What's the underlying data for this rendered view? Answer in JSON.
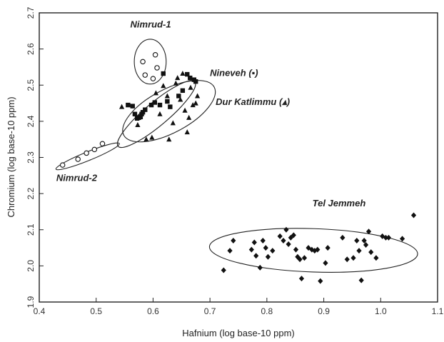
{
  "chart_data": {
    "type": "scatter",
    "xlabel": "Hafnium (log base-10 ppm)",
    "ylabel": "Chromium (log base-10 ppm)",
    "xlim": [
      0.4,
      1.1
    ],
    "ylim": [
      1.9,
      2.7
    ],
    "x_ticks": [
      0.4,
      0.5,
      0.6,
      0.7,
      0.8,
      0.9,
      1.0,
      1.1
    ],
    "x_tick_labels": [
      "0.4",
      "0.5",
      "0.6",
      "0.7",
      "0.8",
      "0.9",
      "1.0",
      "1.1"
    ],
    "y_ticks": [
      1.9,
      2.0,
      2.1,
      2.2,
      2.3,
      2.4,
      2.5,
      2.6,
      2.7
    ],
    "y_tick_labels": [
      "1.9",
      "2.0",
      "2.1",
      "2.2",
      "2.3",
      "2.4",
      "2.5",
      "2.6",
      "2.7"
    ],
    "grid": false,
    "annotations": [
      {
        "text": "Nimrud-1",
        "x": 0.56,
        "y": 2.66
      },
      {
        "text": "Nineveh (▪)",
        "x": 0.7,
        "y": 2.525
      },
      {
        "text": "Dur Katlimmu (▴)",
        "x": 0.71,
        "y": 2.445
      },
      {
        "text": "Nimrud-2",
        "x": 0.43,
        "y": 2.235
      },
      {
        "text": "Tel Jemmeh",
        "x": 0.88,
        "y": 2.165
      }
    ],
    "groups": [
      {
        "marker": "open-circle",
        "ellipse": {
          "cx": 0.595,
          "cy": 2.565,
          "rx": 0.028,
          "ry": 0.062,
          "angle": 0
        },
        "points": [
          [
            0.582,
            2.565
          ],
          [
            0.604,
            2.584
          ],
          [
            0.607,
            2.548
          ],
          [
            0.586,
            2.528
          ],
          [
            0.6,
            2.518
          ]
        ]
      },
      {
        "marker": "open-circle",
        "ellipse": {
          "cx": 0.485,
          "cy": 2.303,
          "rx": 0.06,
          "ry": 0.012,
          "angle": -22
        },
        "points": [
          [
            0.441,
            2.279
          ],
          [
            0.468,
            2.295
          ],
          [
            0.483,
            2.312
          ],
          [
            0.497,
            2.322
          ],
          [
            0.511,
            2.338
          ]
        ]
      },
      {
        "marker": "square",
        "ellipse": {
          "cx": 0.606,
          "cy": 2.42,
          "rx": 0.088,
          "ry": 0.032,
          "angle": -40
        },
        "points": [
          [
            0.556,
            2.445
          ],
          [
            0.564,
            2.442
          ],
          [
            0.568,
            2.42
          ],
          [
            0.572,
            2.408
          ],
          [
            0.575,
            2.41
          ],
          [
            0.578,
            2.412
          ],
          [
            0.582,
            2.425
          ],
          [
            0.586,
            2.432
          ],
          [
            0.597,
            2.445
          ],
          [
            0.603,
            2.452
          ],
          [
            0.612,
            2.445
          ],
          [
            0.618,
            2.532
          ],
          [
            0.625,
            2.455
          ],
          [
            0.63,
            2.44
          ],
          [
            0.645,
            2.47
          ],
          [
            0.652,
            2.485
          ],
          [
            0.66,
            2.53
          ],
          [
            0.665,
            2.52
          ],
          [
            0.672,
            2.515
          ],
          [
            0.675,
            2.51
          ],
          [
            0.58,
            2.42
          ]
        ]
      },
      {
        "marker": "triangle",
        "ellipse": {
          "cx": 0.628,
          "cy": 2.428,
          "rx": 0.09,
          "ry": 0.06,
          "angle": -28
        },
        "points": [
          [
            0.545,
            2.44
          ],
          [
            0.573,
            2.39
          ],
          [
            0.588,
            2.35
          ],
          [
            0.598,
            2.355
          ],
          [
            0.605,
            2.478
          ],
          [
            0.612,
            2.42
          ],
          [
            0.618,
            2.498
          ],
          [
            0.625,
            2.47
          ],
          [
            0.628,
            2.35
          ],
          [
            0.635,
            2.395
          ],
          [
            0.64,
            2.505
          ],
          [
            0.643,
            2.52
          ],
          [
            0.648,
            2.46
          ],
          [
            0.652,
            2.532
          ],
          [
            0.656,
            2.43
          ],
          [
            0.66,
            2.37
          ],
          [
            0.663,
            2.41
          ],
          [
            0.666,
            2.493
          ],
          [
            0.67,
            2.445
          ],
          [
            0.675,
            2.45
          ],
          [
            0.678,
            2.47
          ]
        ]
      },
      {
        "marker": "diamond",
        "ellipse": {
          "cx": 0.882,
          "cy": 2.043,
          "rx": 0.183,
          "ry": 0.06,
          "angle": 2
        },
        "points": [
          [
            0.724,
            1.988
          ],
          [
            0.735,
            2.042
          ],
          [
            0.741,
            2.07
          ],
          [
            0.773,
            2.045
          ],
          [
            0.778,
            2.065
          ],
          [
            0.781,
            2.028
          ],
          [
            0.788,
            1.995
          ],
          [
            0.793,
            2.07
          ],
          [
            0.798,
            2.05
          ],
          [
            0.802,
            2.025
          ],
          [
            0.81,
            2.042
          ],
          [
            0.823,
            2.082
          ],
          [
            0.829,
            2.07
          ],
          [
            0.834,
            2.1
          ],
          [
            0.838,
            2.06
          ],
          [
            0.842,
            2.078
          ],
          [
            0.847,
            2.085
          ],
          [
            0.851,
            2.045
          ],
          [
            0.854,
            2.025
          ],
          [
            0.858,
            2.018
          ],
          [
            0.861,
            1.965
          ],
          [
            0.866,
            2.022
          ],
          [
            0.873,
            2.05
          ],
          [
            0.879,
            2.045
          ],
          [
            0.884,
            2.042
          ],
          [
            0.889,
            2.045
          ],
          [
            0.894,
            1.958
          ],
          [
            0.903,
            2.008
          ],
          [
            0.907,
            2.05
          ],
          [
            0.933,
            2.078
          ],
          [
            0.941,
            2.018
          ],
          [
            0.952,
            2.022
          ],
          [
            0.958,
            2.07
          ],
          [
            0.962,
            2.042
          ],
          [
            0.966,
            1.96
          ],
          [
            0.971,
            2.07
          ],
          [
            0.974,
            2.058
          ],
          [
            0.979,
            2.095
          ],
          [
            0.983,
            2.038
          ],
          [
            0.992,
            2.022
          ],
          [
            1.003,
            2.082
          ],
          [
            1.009,
            2.078
          ],
          [
            1.014,
            2.078
          ],
          [
            1.038,
            2.075
          ],
          [
            1.058,
            2.14
          ]
        ]
      }
    ]
  }
}
